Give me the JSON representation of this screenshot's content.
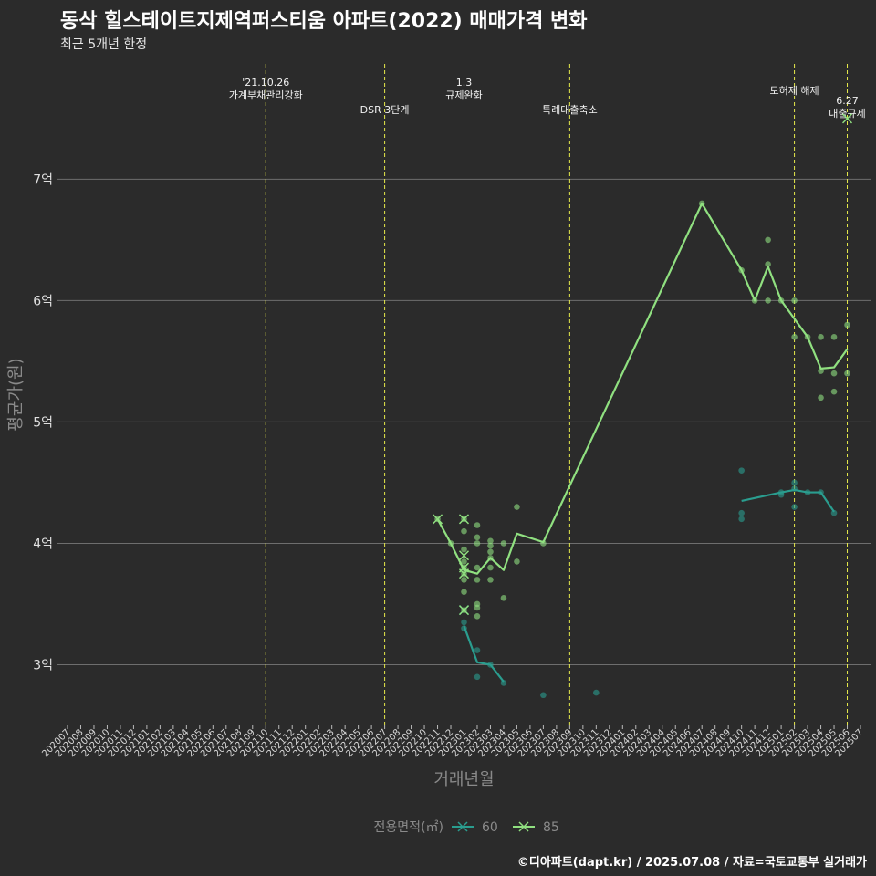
{
  "chart_data": {
    "type": "line",
    "title": "동삭 힐스테이트지제역퍼스티움 아파트(2022) 매매가격 변화",
    "subtitle": "최근 5개년 한정",
    "xlabel": "거래년월",
    "ylabel": "평균가(원)",
    "caption": "©디아파트(dapt.kr) / 2025.07.08 / 자료=국토교통부 실거래가",
    "legend_title": "전용면적(㎡)",
    "y_ticks": [
      3,
      4,
      5,
      6,
      7
    ],
    "y_tick_labels": [
      "3억",
      "4억",
      "5억",
      "6억",
      "7억"
    ],
    "ylim": [
      2.5,
      7.95
    ],
    "x_categories": [
      "202007",
      "202008",
      "202009",
      "202010",
      "202011",
      "202012",
      "202101",
      "202102",
      "202103",
      "202104",
      "202105",
      "202106",
      "202107",
      "202108",
      "202109",
      "202110",
      "202111",
      "202112",
      "202201",
      "202202",
      "202203",
      "202204",
      "202205",
      "202206",
      "202207",
      "202208",
      "202209",
      "202210",
      "202211",
      "202212",
      "202301",
      "202302",
      "202303",
      "202304",
      "202305",
      "202306",
      "202307",
      "202308",
      "202309",
      "202310",
      "202311",
      "202312",
      "202401",
      "202402",
      "202403",
      "202404",
      "202405",
      "202406",
      "202407",
      "202408",
      "202409",
      "202410",
      "202411",
      "202412",
      "202501",
      "202502",
      "202503",
      "202504",
      "202505",
      "202506",
      "202507"
    ],
    "events": [
      {
        "x": "202110",
        "label": "'21.10.26\n가계부채관리강화",
        "level": 0
      },
      {
        "x": "202207",
        "label": "DSR 3단계",
        "level": 1
      },
      {
        "x": "202301",
        "label": "1.3\n규제완화",
        "level": 0
      },
      {
        "x": "202309",
        "label": "특례대출축소",
        "level": 1
      },
      {
        "x": "202502",
        "label": "토허제 해제",
        "level": 0
      },
      {
        "x": "202506",
        "label": "6.27\n대출규제",
        "level": 1
      }
    ],
    "series": [
      {
        "name": "60",
        "color": "#2a9d8f",
        "line": [
          [
            "202301",
            3.32
          ],
          [
            "202302",
            3.02
          ],
          [
            "202303",
            3.0
          ],
          [
            "202304",
            2.86
          ]
        ],
        "points": [
          [
            "202301",
            3.35
          ],
          [
            "202301",
            3.3
          ],
          [
            "202302",
            3.12
          ],
          [
            "202302",
            2.9
          ],
          [
            "202303",
            3.0
          ],
          [
            "202304",
            2.85
          ],
          [
            "202307",
            2.75
          ],
          [
            "202311",
            2.77
          ],
          [
            "202410",
            4.6
          ],
          [
            "202410",
            4.25
          ],
          [
            "202410",
            4.2
          ],
          [
            "202501",
            4.4
          ],
          [
            "202501",
            4.42
          ],
          [
            "202502",
            4.5
          ],
          [
            "202502",
            4.45
          ],
          [
            "202502",
            4.3
          ],
          [
            "202503",
            4.42
          ],
          [
            "202504",
            4.42
          ],
          [
            "202505",
            4.25
          ]
        ],
        "line2": [
          [
            "202410",
            4.35
          ],
          [
            "202501",
            4.42
          ],
          [
            "202502",
            4.44
          ],
          [
            "202503",
            4.42
          ],
          [
            "202504",
            4.42
          ],
          [
            "202505",
            4.26
          ]
        ],
        "crosses": [
          [
            "202301",
            3.45
          ]
        ]
      },
      {
        "name": "85",
        "color": "#90e080",
        "line": [
          [
            "202211",
            4.2
          ],
          [
            "202212",
            4.0
          ],
          [
            "202301",
            3.78
          ],
          [
            "202302",
            3.75
          ],
          [
            "202303",
            3.88
          ],
          [
            "202304",
            3.78
          ],
          [
            "202305",
            4.08
          ],
          [
            "202307",
            4.01
          ],
          [
            "202407",
            6.8
          ],
          [
            "202410",
            6.25
          ],
          [
            "202411",
            6.0
          ],
          [
            "202412",
            6.28
          ],
          [
            "202501",
            6.0
          ],
          [
            "202502",
            5.85
          ],
          [
            "202503",
            5.7
          ],
          [
            "202504",
            5.44
          ],
          [
            "202505",
            5.45
          ],
          [
            "202506",
            5.6
          ]
        ],
        "points": [
          [
            "202211",
            4.2
          ],
          [
            "202212",
            4.0
          ],
          [
            "202301",
            4.2
          ],
          [
            "202301",
            4.1
          ],
          [
            "202301",
            3.95
          ],
          [
            "202301",
            3.85
          ],
          [
            "202301",
            3.8
          ],
          [
            "202301",
            3.75
          ],
          [
            "202301",
            3.7
          ],
          [
            "202301",
            3.6
          ],
          [
            "202301",
            3.45
          ],
          [
            "202302",
            4.15
          ],
          [
            "202302",
            4.05
          ],
          [
            "202302",
            4.0
          ],
          [
            "202302",
            3.8
          ],
          [
            "202302",
            3.7
          ],
          [
            "202302",
            3.5
          ],
          [
            "202302",
            3.47
          ],
          [
            "202302",
            3.4
          ],
          [
            "202303",
            4.02
          ],
          [
            "202303",
            3.98
          ],
          [
            "202303",
            3.93
          ],
          [
            "202303",
            3.88
          ],
          [
            "202303",
            3.8
          ],
          [
            "202303",
            3.7
          ],
          [
            "202304",
            4.0
          ],
          [
            "202304",
            3.55
          ],
          [
            "202305",
            4.3
          ],
          [
            "202305",
            3.85
          ],
          [
            "202307",
            4.0
          ],
          [
            "202407",
            6.8
          ],
          [
            "202410",
            6.25
          ],
          [
            "202411",
            6.0
          ],
          [
            "202412",
            6.5
          ],
          [
            "202412",
            6.3
          ],
          [
            "202412",
            6.0
          ],
          [
            "202501",
            6.0
          ],
          [
            "202502",
            6.0
          ],
          [
            "202502",
            5.7
          ],
          [
            "202503",
            5.7
          ],
          [
            "202504",
            5.7
          ],
          [
            "202504",
            5.42
          ],
          [
            "202504",
            5.2
          ],
          [
            "202505",
            5.7
          ],
          [
            "202505",
            5.4
          ],
          [
            "202505",
            5.25
          ],
          [
            "202506",
            5.8
          ],
          [
            "202506",
            5.4
          ]
        ],
        "crosses": [
          [
            "202211",
            4.2
          ],
          [
            "202301",
            4.2
          ],
          [
            "202301",
            3.9
          ],
          [
            "202301",
            3.8
          ],
          [
            "202301",
            3.75
          ],
          [
            "202301",
            3.45
          ],
          [
            "202506",
            7.5
          ]
        ]
      }
    ]
  }
}
